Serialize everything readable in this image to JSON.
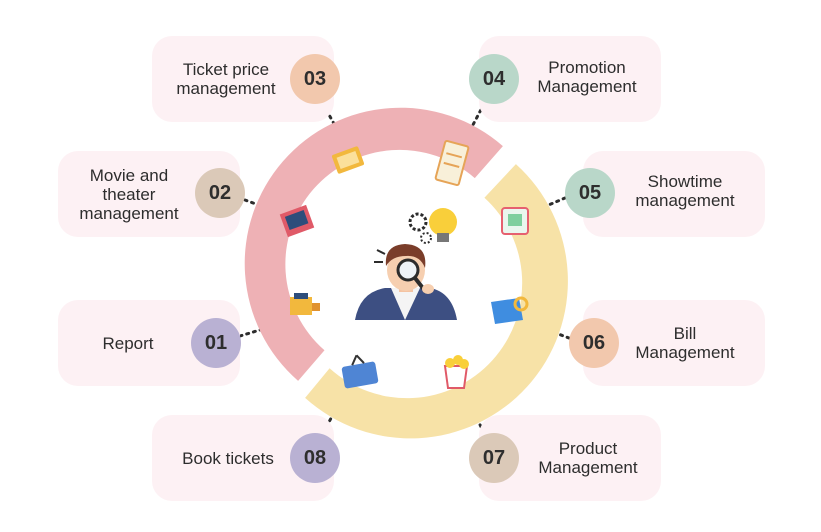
{
  "items": [
    {
      "num": "01",
      "label": "Report",
      "badge_color": "#b9b1d3"
    },
    {
      "num": "02",
      "label": "Movie and\ntheater\nmanagement",
      "badge_color": "#dbc9b8"
    },
    {
      "num": "03",
      "label": "Ticket price\nmanagement",
      "badge_color": "#f2c8ad"
    },
    {
      "num": "04",
      "label": "Promotion\nManagement",
      "badge_color": "#b9d7c9"
    },
    {
      "num": "05",
      "label": "Showtime\nmanagement",
      "badge_color": "#b9d7c9"
    },
    {
      "num": "06",
      "label": "Bill\nManagement",
      "badge_color": "#f2c8ad"
    },
    {
      "num": "07",
      "label": "Product\nManagement",
      "badge_color": "#dbc9b8"
    },
    {
      "num": "08",
      "label": "Book tickets",
      "badge_color": "#b9b1d3"
    }
  ],
  "colors": {
    "card": "#fdf1f4",
    "ring_pink": "#eeb1b5",
    "ring_yellow": "#f7e2a7"
  },
  "icons": {
    "center": "person-magnifier-icon",
    "ring": [
      "ticket-stub-icon",
      "ticket-strip-icon",
      "cinema-screen-icon",
      "calendar-icon",
      "film-camera-icon",
      "receipt-icon",
      "sale-tag-icon",
      "popcorn-icon"
    ]
  }
}
